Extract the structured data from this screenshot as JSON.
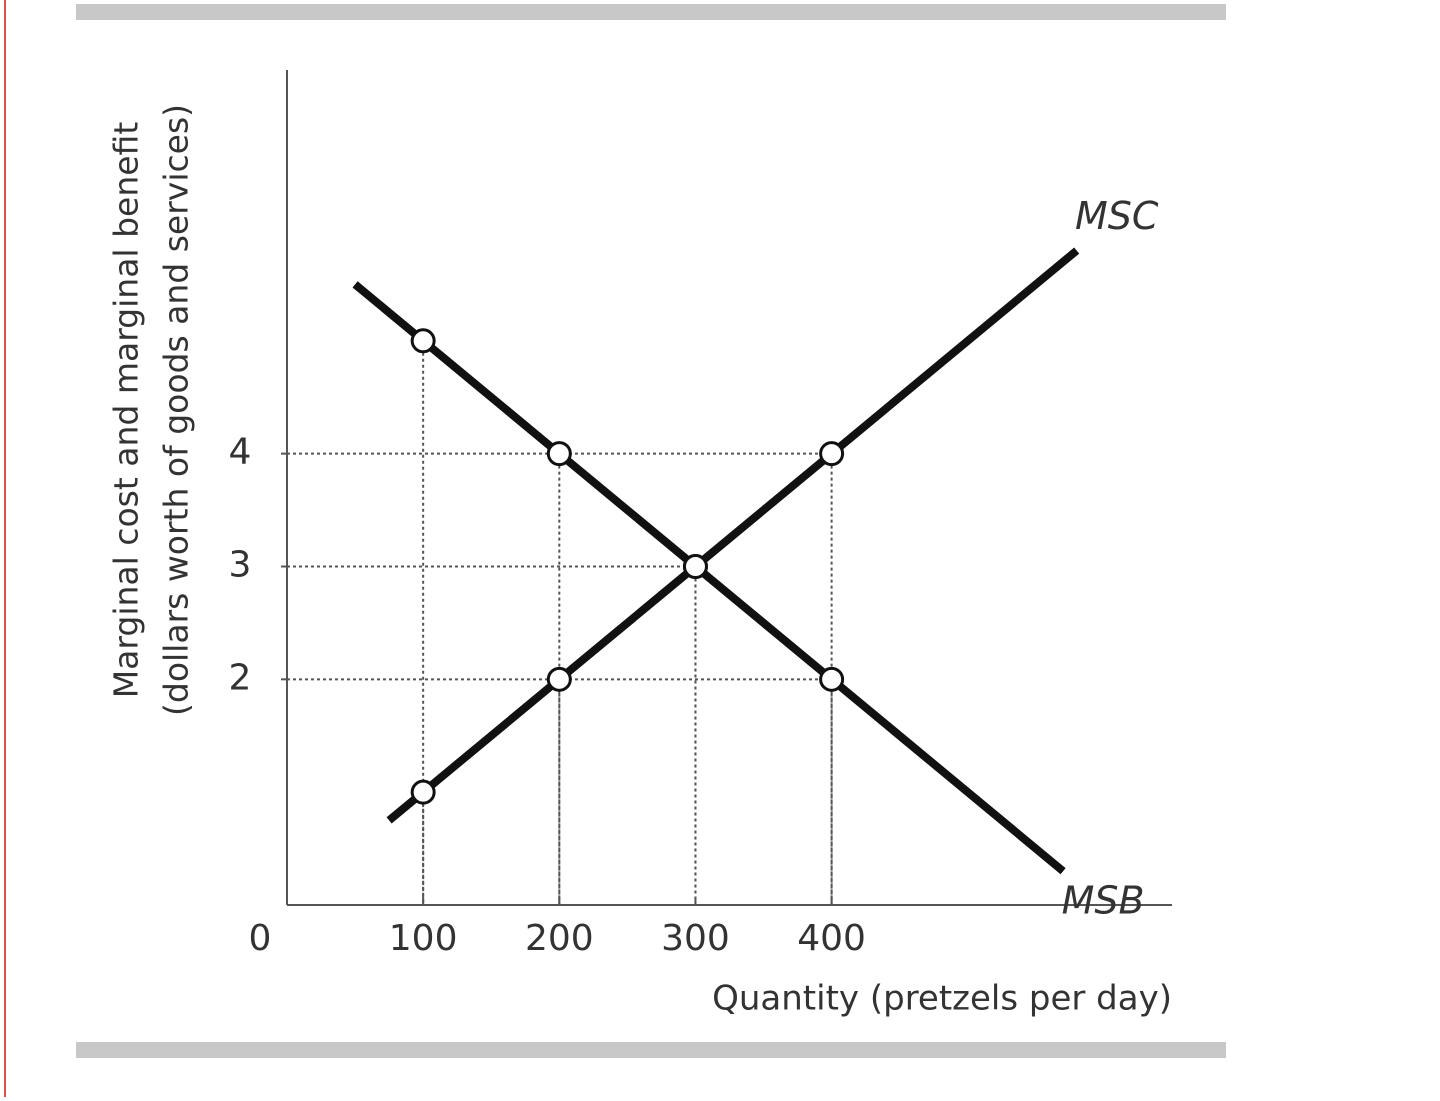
{
  "chart_data": {
    "type": "line",
    "ylabel": [
      "Marginal cost and marginal benefit",
      "(dollars worth of goods and services)"
    ],
    "xlabel": "Quantity (pretzels per day)",
    "xlim": [
      0,
      650
    ],
    "xticks": [
      0,
      100,
      200,
      300,
      400
    ],
    "ylim": [
      0,
      7.4
    ],
    "yticks": [
      2,
      3,
      4
    ],
    "series": [
      {
        "name": "MSC",
        "color": "#111111",
        "x": [
          75,
          100,
          200,
          300,
          400,
          580
        ],
        "values": [
          0.75,
          1,
          2,
          3,
          4,
          5.8
        ]
      },
      {
        "name": "MSB",
        "color": "#111111",
        "x": [
          50,
          100,
          200,
          300,
          400,
          570
        ],
        "values": [
          5.5,
          5,
          4,
          3,
          2,
          0.3
        ]
      }
    ]
  }
}
